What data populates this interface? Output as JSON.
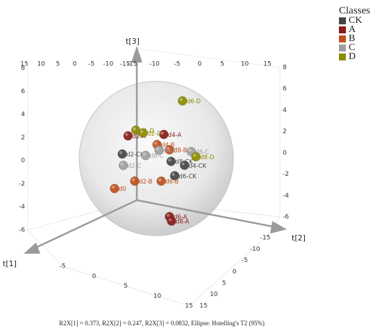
{
  "chart_data": {
    "type": "scatter3d",
    "legend_title": "Classes",
    "x_label": "t[1]",
    "y_label": "t[2]",
    "z_label": "t[3]",
    "footnote": "R2X[1] = 0.373, R2X[2] = 0.247, R2X[3] = 0.0832, Ellipse: Hotelling's T2 (95%)",
    "xlim": [
      -5,
      15
    ],
    "ylim": [
      -15,
      15
    ],
    "zlim": [
      -6,
      8
    ],
    "xticks": [
      -5,
      0,
      5,
      10,
      15
    ],
    "yticks": [
      -15,
      -10,
      -5,
      0,
      5,
      10,
      15
    ],
    "yticks_top": [
      15,
      10,
      5,
      0,
      -5,
      -10,
      -15
    ],
    "yticks_back": [
      -15,
      -10,
      -5,
      0,
      5,
      10,
      15
    ],
    "zticks": [
      -6,
      -4,
      -2,
      0,
      2,
      4,
      6,
      8
    ],
    "zticks_right": [
      -6,
      -4,
      -2,
      0,
      2,
      4,
      6,
      8
    ],
    "series": [
      {
        "name": "CK",
        "color": "#454545",
        "labels": [
          "d2-CK",
          "d8-CK",
          "d4-CK",
          "d6-CK"
        ],
        "x": [
          1.5,
          -3.5,
          -4.9,
          -3.9
        ],
        "y": [
          -1.3,
          3.1,
          4.3,
          3.4
        ],
        "z": [
          1.1,
          -0.1,
          -0.6,
          -1.4
        ]
      },
      {
        "name": "A",
        "color": "#8b1a1a",
        "labels": [
          "d2-A",
          "d4-A",
          "d6-A",
          "d8-A"
        ],
        "x": [
          0.9,
          -2.8,
          -3.4,
          -3.6
        ],
        "y": [
          -0.8,
          2.4,
          2.9,
          3.1
        ],
        "z": [
          2.6,
          2.3,
          -4.9,
          -5.3
        ]
      },
      {
        "name": "B",
        "color": "#c0501e",
        "labels": [
          "d4-B",
          "d8-B",
          "d2-B",
          "d6-B",
          "d0"
        ],
        "x": [
          -2.1,
          -3.4,
          0.2,
          -2.5,
          2.3
        ],
        "y": [
          1.8,
          2.9,
          -0.2,
          2.2,
          -2.0
        ],
        "z": [
          1.5,
          0.9,
          -1.4,
          -1.7,
          -1.8
        ]
      },
      {
        "name": "C",
        "color": "#a0a0a0",
        "labels": [
          "d6-C",
          "d8-C",
          "d4-C",
          "d2-C"
        ],
        "x": [
          -5.6,
          -0.9,
          -2.3,
          1.4
        ],
        "y": [
          4.9,
          0.8,
          2.0,
          -1.2
        ],
        "z": [
          0.5,
          0.7,
          1.0,
          0.1
        ]
      },
      {
        "name": "D",
        "color": "#8c8c00",
        "labels": [
          "d6-D",
          "d1-D",
          "d2-D",
          "d8-D"
        ],
        "x": [
          -4.7,
          0.1,
          -0.6,
          -6.1
        ],
        "y": [
          4.1,
          -0.1,
          0.6,
          5.3
        ],
        "z": [
          5.0,
          3.0,
          2.7,
          0.0
        ]
      }
    ]
  }
}
